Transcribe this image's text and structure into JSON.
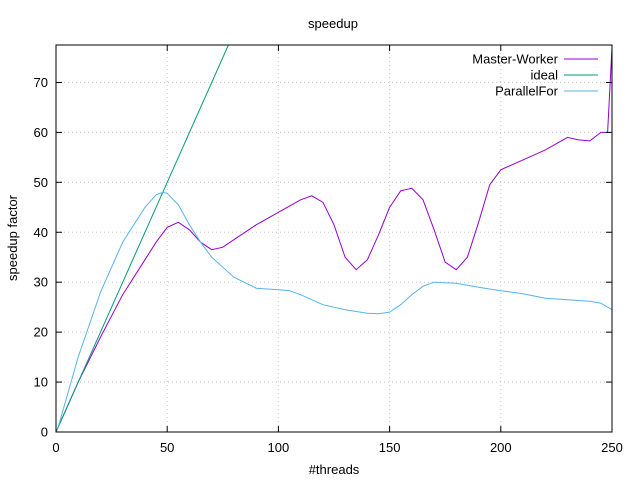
{
  "chart_data": {
    "type": "line",
    "title": "speedup",
    "xlabel": "#threads",
    "ylabel": "speedup factor",
    "xlim": [
      0,
      250
    ],
    "ylim": [
      0,
      77.5
    ],
    "xticks": [
      0,
      50,
      100,
      150,
      200,
      250
    ],
    "yticks": [
      0,
      10,
      20,
      30,
      40,
      50,
      60,
      70
    ],
    "grid": true,
    "legend_position": "top-right",
    "series": [
      {
        "name": "Master-Worker",
        "color": "#9400d3",
        "x": [
          1,
          10,
          20,
          30,
          40,
          45,
          50,
          55,
          60,
          65,
          70,
          75,
          80,
          90,
          100,
          110,
          115,
          120,
          125,
          130,
          135,
          140,
          145,
          150,
          155,
          160,
          165,
          170,
          175,
          180,
          185,
          190,
          195,
          200,
          205,
          210,
          220,
          230,
          235,
          240,
          245,
          248,
          250
        ],
        "y": [
          1,
          10,
          19,
          27.5,
          34.5,
          38,
          41,
          42,
          40.5,
          38,
          36.5,
          37,
          38.5,
          41.5,
          44,
          46.5,
          47.3,
          46,
          41.5,
          35,
          32.5,
          34.5,
          39.5,
          45,
          48.3,
          48.8,
          46.5,
          40.5,
          34,
          32.5,
          35,
          42,
          49.5,
          52.5,
          53.5,
          54.5,
          56.5,
          59,
          58.5,
          58.3,
          60,
          60,
          77
        ]
      },
      {
        "name": "ideal",
        "color": "#009e73",
        "x": [
          0,
          77.5
        ],
        "y": [
          0,
          77.5
        ]
      },
      {
        "name": "ParallelFor",
        "color": "#56b4e9",
        "x": [
          1,
          10,
          20,
          30,
          40,
          45,
          48,
          50,
          55,
          60,
          65,
          70,
          80,
          90,
          100,
          105,
          110,
          120,
          130,
          140,
          145,
          150,
          155,
          160,
          165,
          170,
          180,
          190,
          200,
          210,
          220,
          230,
          240,
          245,
          250
        ],
        "y": [
          1,
          15,
          28,
          38,
          45,
          47.5,
          48,
          47.8,
          45.5,
          41.5,
          38,
          35,
          31,
          28.8,
          28.5,
          28.3,
          27.5,
          25.5,
          24.5,
          23.8,
          23.7,
          24,
          25.5,
          27.5,
          29.2,
          30,
          29.8,
          29,
          28.3,
          27.7,
          26.8,
          26.5,
          26.2,
          25.8,
          24.5
        ]
      }
    ]
  }
}
